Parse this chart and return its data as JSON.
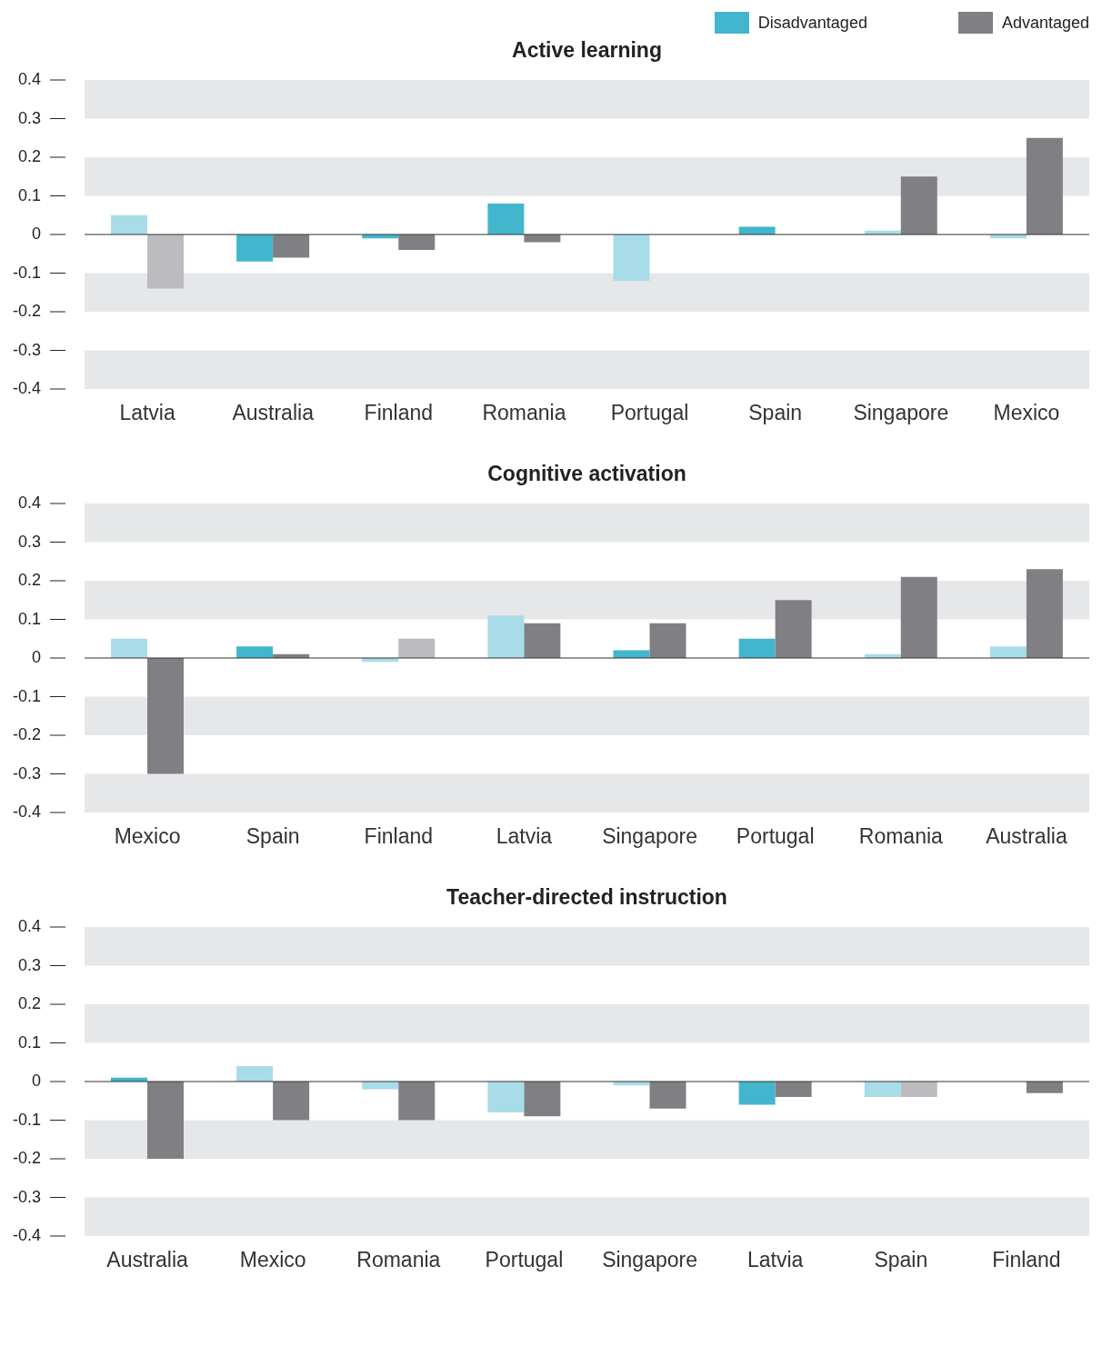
{
  "chart_data": [
    {
      "type": "bar",
      "title": "Active learning",
      "categories": [
        "Latvia",
        "Australia",
        "Finland",
        "Romania",
        "Portugal",
        "Spain",
        "Singapore",
        "Mexico"
      ],
      "series": [
        {
          "name": "Disadvantaged",
          "color": "#41b6cc",
          "values": [
            0.05,
            -0.07,
            -0.01,
            0.08,
            -0.12,
            0.02,
            0.01,
            -0.01
          ],
          "colors": [
            "#a8dce8",
            "#41b6cc",
            "#41b6cc",
            "#41b6cc",
            "#a8dce8",
            "#41b6cc",
            "#a8dce8",
            "#a8dce8"
          ]
        },
        {
          "name": "Advantaged",
          "color": "#808084",
          "values": [
            -0.14,
            -0.06,
            -0.04,
            -0.02,
            0,
            0,
            0.15,
            0.25
          ],
          "colors": [
            "#bcbcc0",
            "#808084",
            "#808084",
            "#808084",
            "#808084",
            "#808084",
            "#808084",
            "#808084"
          ]
        }
      ],
      "ylim": [
        -0.4,
        0.4
      ],
      "yticks": [
        -0.4,
        -0.3,
        -0.2,
        -0.1,
        0,
        0.1,
        0.2,
        0.3,
        0.4
      ],
      "legend": "top right",
      "ref_lines": [
        {
          "axis": "y",
          "value": 0
        }
      ],
      "bands": [
        {
          "axis": "y",
          "from": 0.3,
          "to": 0.4,
          "color": "#e6e7e9"
        },
        {
          "axis": "y",
          "from": 0.1,
          "to": 0.2,
          "color": "#e6e7e9"
        },
        {
          "axis": "y",
          "from": -0.2,
          "to": -0.1,
          "color": "#e6e7e9"
        },
        {
          "axis": "y",
          "from": -0.4,
          "to": -0.3,
          "color": "#e6e7e9"
        }
      ]
    },
    {
      "type": "bar",
      "title": "Cognitive activation",
      "categories": [
        "Mexico",
        "Spain",
        "Finland",
        "Latvia",
        "Singapore",
        "Portugal",
        "Romania",
        "Australia"
      ],
      "series": [
        {
          "color": "#41b6cc",
          "values": [
            0.05,
            0.03,
            -0.01,
            0.11,
            0.02,
            0.05,
            0.01,
            0.03
          ],
          "colors": [
            "#a8dce8",
            "#41b6cc",
            "#a8dce8",
            "#a8dce8",
            "#41b6cc",
            "#41b6cc",
            "#a8dce8",
            "#a8dce8"
          ]
        },
        {
          "color": "#808084",
          "values": [
            -0.3,
            0.01,
            0.05,
            0.09,
            0.09,
            0.15,
            0.21,
            0.23
          ],
          "colors": [
            "#808084",
            "#808084",
            "#bcbcc0",
            "#808084",
            "#808084",
            "#808084",
            "#808084",
            "#808084"
          ]
        }
      ],
      "ylim": [
        -0.4,
        0.4
      ],
      "yticks": [
        -0.4,
        -0.3,
        -0.2,
        -0.1,
        0,
        0.1,
        0.2,
        0.3,
        0.4
      ],
      "ref_lines": [
        {
          "axis": "y",
          "value": 0
        }
      ],
      "bands": [
        {
          "axis": "y",
          "from": 0.3,
          "to": 0.4,
          "color": "#e6e7e9"
        },
        {
          "axis": "y",
          "from": 0.1,
          "to": 0.2,
          "color": "#e6e7e9"
        },
        {
          "axis": "y",
          "from": -0.2,
          "to": -0.1,
          "color": "#e6e7e9"
        },
        {
          "axis": "y",
          "from": -0.4,
          "to": -0.3,
          "color": "#e6e7e9"
        }
      ]
    },
    {
      "type": "bar",
      "title": "Teacher-directed instruction",
      "categories": [
        "Australia",
        "Mexico",
        "Romania",
        "Portugal",
        "Singapore",
        "Latvia",
        "Spain",
        "Finland"
      ],
      "series": [
        {
          "color": "#41b6cc",
          "values": [
            0.01,
            0.04,
            -0.02,
            -0.08,
            -0.01,
            -0.06,
            -0.04,
            0
          ],
          "colors": [
            "#41b6cc",
            "#a8dce8",
            "#a8dce8",
            "#a8dce8",
            "#a8dce8",
            "#41b6cc",
            "#a8dce8",
            "#41b6cc"
          ]
        },
        {
          "color": "#808084",
          "values": [
            -0.2,
            -0.1,
            -0.1,
            -0.09,
            -0.07,
            -0.04,
            -0.04,
            -0.03
          ],
          "colors": [
            "#808084",
            "#808084",
            "#808084",
            "#808084",
            "#808084",
            "#808084",
            "#bcbcc0",
            "#808084"
          ]
        }
      ],
      "ylim": [
        -0.4,
        0.4
      ],
      "yticks": [
        -0.4,
        -0.3,
        -0.2,
        -0.1,
        0,
        0.1,
        0.2,
        0.3,
        0.4
      ],
      "ref_lines": [
        {
          "axis": "y",
          "value": 0
        }
      ],
      "bands": [
        {
          "axis": "y",
          "from": 0.3,
          "to": 0.4,
          "color": "#e6e7e9"
        },
        {
          "axis": "y",
          "from": 0.1,
          "to": 0.2,
          "color": "#e6e7e9"
        },
        {
          "axis": "y",
          "from": -0.2,
          "to": -0.1,
          "color": "#e6e7e9"
        },
        {
          "axis": "y",
          "from": -0.4,
          "to": -0.3,
          "color": "#e6e7e9"
        }
      ]
    }
  ]
}
